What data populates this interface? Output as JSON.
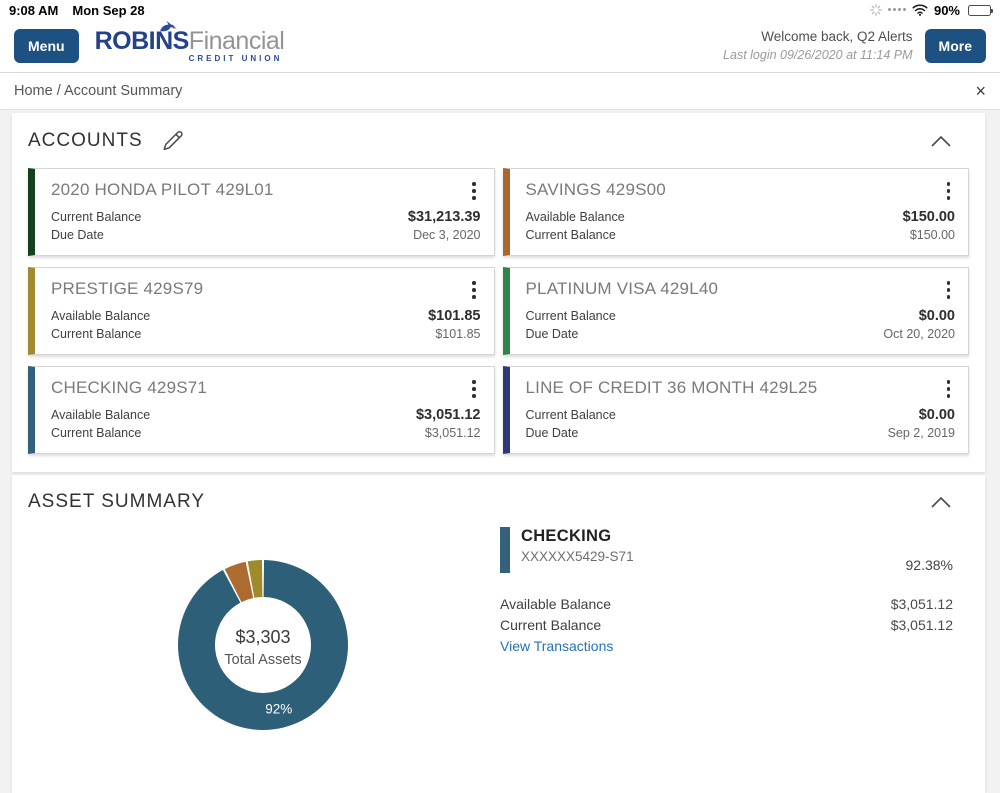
{
  "status_bar": {
    "time": "9:08 AM",
    "date": "Mon Sep 28",
    "battery_percent": "90%"
  },
  "header": {
    "menu_label": "Menu",
    "logo": {
      "primary": "ROBINS",
      "secondary": "Financial",
      "tagline": "CREDIT UNION"
    },
    "welcome": "Welcome back, Q2 Alerts",
    "last_login": "Last login 09/26/2020 at 11:14 PM",
    "more_label": "More"
  },
  "breadcrumb": {
    "text": "Home / Account Summary",
    "close_icon": "×"
  },
  "accounts_section": {
    "title": "ACCOUNTS",
    "cards": [
      {
        "name": "2020 HONDA PILOT 429L01",
        "accent": "#15401f",
        "rows": [
          {
            "label": "Current Balance",
            "value": "$31,213.39"
          },
          {
            "label": "Due Date",
            "value": "Dec 3, 2020"
          }
        ]
      },
      {
        "name": "SAVINGS 429S00",
        "accent": "#a9682f",
        "rows": [
          {
            "label": "Available Balance",
            "value": "$150.00"
          },
          {
            "label": "Current Balance",
            "value": "$150.00"
          }
        ]
      },
      {
        "name": "PRESTIGE 429S79",
        "accent": "#a08b33",
        "rows": [
          {
            "label": "Available Balance",
            "value": "$101.85"
          },
          {
            "label": "Current Balance",
            "value": "$101.85"
          }
        ]
      },
      {
        "name": "PLATINUM VISA 429L40",
        "accent": "#2e8449",
        "rows": [
          {
            "label": "Current Balance",
            "value": "$0.00"
          },
          {
            "label": "Due Date",
            "value": "Oct 20, 2020"
          }
        ]
      },
      {
        "name": "CHECKING 429S71",
        "accent": "#33607a",
        "rows": [
          {
            "label": "Available Balance",
            "value": "$3,051.12"
          },
          {
            "label": "Current Balance",
            "value": "$3,051.12"
          }
        ]
      },
      {
        "name": "LINE OF CREDIT 36 MONTH 429L25",
        "accent": "#2d3a75",
        "rows": [
          {
            "label": "Current Balance",
            "value": "$0.00"
          },
          {
            "label": "Due Date",
            "value": "Sep 2, 2019"
          }
        ]
      }
    ]
  },
  "asset_summary": {
    "title": "ASSET SUMMARY",
    "detail": {
      "name": "CHECKING",
      "masked_number": "XXXXXX5429-S71",
      "percent": "92.38%",
      "accent": "#33607a",
      "rows": [
        {
          "label": "Available Balance",
          "value": "$3,051.12"
        },
        {
          "label": "Current Balance",
          "value": "$3,051.12"
        }
      ],
      "link": "View Transactions"
    }
  },
  "chart_data": {
    "type": "pie",
    "title": "Asset Summary",
    "total": 3303,
    "center_label": "$3,303",
    "center_sublabel": "Total Assets",
    "slice_label": "92%",
    "series": [
      {
        "name": "Checking",
        "value": 3051.12,
        "percent": 92.38,
        "color": "#2d5f78"
      },
      {
        "name": "Savings",
        "value": 150.0,
        "percent": 4.54,
        "color": "#ad6b30"
      },
      {
        "name": "Prestige",
        "value": 101.85,
        "percent": 3.08,
        "color": "#a08b2b"
      }
    ],
    "legend_position": "none",
    "inner_radius": 48,
    "outer_radius": 85
  }
}
